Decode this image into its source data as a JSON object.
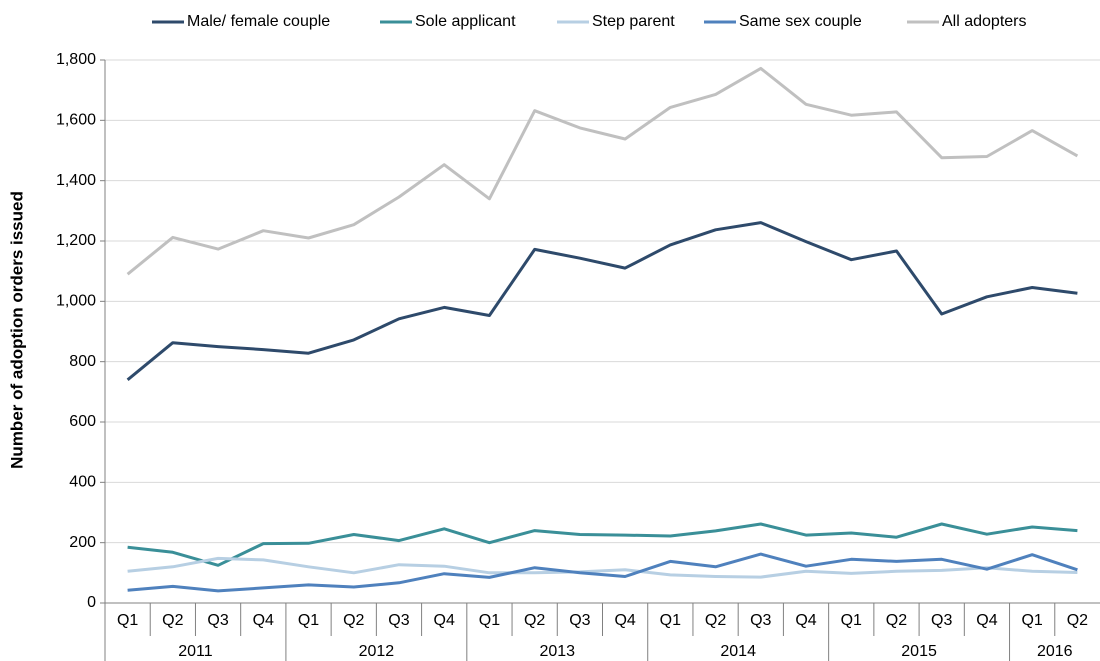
{
  "chart_data": {
    "type": "line",
    "y_label": "Number of adoption orders issued",
    "category_groups": [
      {
        "name": "2011",
        "categories": [
          "Q1",
          "Q2",
          "Q3",
          "Q4"
        ]
      },
      {
        "name": "2012",
        "categories": [
          "Q1",
          "Q2",
          "Q3",
          "Q4"
        ]
      },
      {
        "name": "2013",
        "categories": [
          "Q1",
          "Q2",
          "Q3",
          "Q4"
        ]
      },
      {
        "name": "2014",
        "categories": [
          "Q1",
          "Q2",
          "Q3",
          "Q4"
        ]
      },
      {
        "name": "2015",
        "categories": [
          "Q1",
          "Q2",
          "Q3",
          "Q4"
        ]
      },
      {
        "name": "2016",
        "categories": [
          "Q1",
          "Q2"
        ]
      }
    ],
    "series": [
      {
        "name": "Male/ female couple",
        "color": "#2e4a6b",
        "values": [
          740,
          863,
          850,
          840,
          828,
          872,
          942,
          980,
          953,
          1172,
          1143,
          1110,
          1187,
          1237,
          1261,
          1198,
          1138,
          1167,
          958,
          1015,
          1046,
          1027
        ]
      },
      {
        "name": "Sole applicant",
        "color": "#3a8f98",
        "values": [
          185,
          168,
          125,
          197,
          198,
          227,
          207,
          246,
          200,
          240,
          227,
          225,
          222,
          239,
          262,
          225,
          232,
          218,
          262,
          228,
          252,
          240
        ]
      },
      {
        "name": "Step parent",
        "color": "#b7cfe3",
        "values": [
          105,
          120,
          148,
          143,
          120,
          100,
          127,
          122,
          100,
          100,
          103,
          110,
          93,
          88,
          86,
          105,
          98,
          105,
          108,
          117,
          105,
          101
        ]
      },
      {
        "name": "Same sex couple",
        "color": "#4f81bd",
        "values": [
          42,
          55,
          40,
          50,
          60,
          53,
          67,
          97,
          85,
          117,
          100,
          88,
          138,
          120,
          162,
          122,
          145,
          138,
          145,
          112,
          160,
          110
        ]
      },
      {
        "name": "All adopters",
        "color": "#c0c0c0",
        "values": [
          1090,
          1212,
          1173,
          1234,
          1210,
          1254,
          1346,
          1453,
          1340,
          1632,
          1575,
          1538,
          1643,
          1686,
          1772,
          1653,
          1617,
          1628,
          1476,
          1480,
          1566,
          1482
        ]
      }
    ],
    "ylim": [
      0,
      1800
    ],
    "yticks": [
      0,
      200,
      400,
      600,
      800,
      {
        "value": 1000,
        "label": "1,000"
      },
      {
        "value": 1200,
        "label": "1,200"
      },
      {
        "value": 1400,
        "label": "1,400"
      },
      {
        "value": 1600,
        "label": "1,600"
      },
      {
        "value": 1800,
        "label": "1,800"
      }
    ],
    "grid": true
  }
}
